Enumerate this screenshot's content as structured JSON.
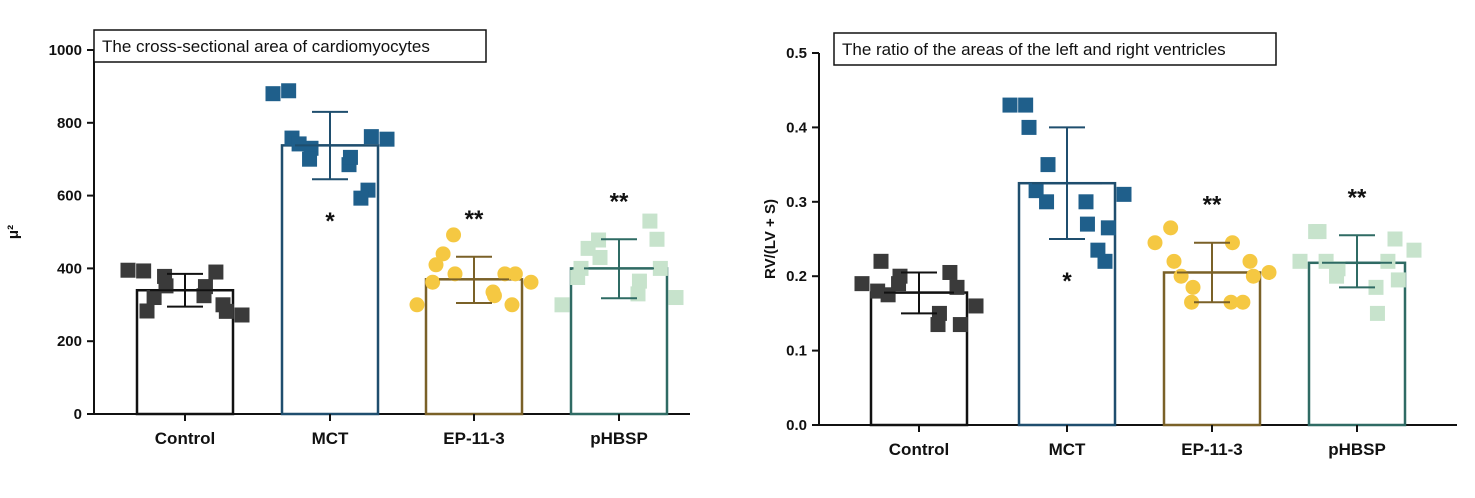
{
  "charts": [
    {
      "id": "left",
      "type": "bar",
      "title": "The cross-sectional area of cardiomyocytes",
      "ylabel": "μ²",
      "ylim": [
        0,
        1000
      ],
      "yticks": [
        "0",
        "200",
        "400",
        "600",
        "800",
        "1000"
      ],
      "ytick_values": [
        0,
        200,
        400,
        600,
        800,
        1000
      ],
      "categories": [
        "Control",
        "MCT",
        "EP-11-3",
        "pHBSP"
      ],
      "means": [
        340,
        738,
        370,
        400
      ],
      "error_bars": [
        [
          295,
          385
        ],
        [
          645,
          830
        ],
        [
          305,
          432
        ],
        [
          318,
          480
        ]
      ],
      "significance": [
        "",
        "*",
        "**",
        "**"
      ],
      "points": [
        [
          [
            395,
            393
          ],
          [
            283,
            320
          ],
          [
            352,
            378
          ],
          [
            325,
            350
          ],
          [
            300,
            390
          ],
          [
            272,
            282
          ]
        ],
        [
          [
            880,
            888
          ],
          [
            758,
            742
          ],
          [
            730,
            700
          ],
          [
            685,
            705
          ],
          [
            615,
            593
          ],
          [
            755,
            762
          ]
        ],
        [
          [
            300,
            362
          ],
          [
            410,
            440
          ],
          [
            385,
            492
          ],
          [
            335,
            325
          ],
          [
            300,
            385
          ],
          [
            362,
            385
          ]
        ],
        [
          [
            300,
            375
          ],
          [
            400,
            455
          ],
          [
            430,
            478
          ],
          [
            330,
            365
          ],
          [
            480,
            530
          ],
          [
            320,
            400
          ]
        ]
      ]
    },
    {
      "id": "right",
      "type": "bar",
      "title": "The ratio of the areas of the left and right ventricles",
      "ylabel": "RV/(LV + S)",
      "ylim": [
        0,
        0.5
      ],
      "yticks": [
        "0.0",
        "0.1",
        "0.2",
        "0.3",
        "0.4",
        "0.5"
      ],
      "ytick_values": [
        0,
        0.1,
        0.2,
        0.3,
        0.4,
        0.5
      ],
      "categories": [
        "Control",
        "MCT",
        "EP-11-3",
        "pHBSP"
      ],
      "means": [
        0.178,
        0.325,
        0.205,
        0.218
      ],
      "error_bars": [
        [
          0.15,
          0.205
        ],
        [
          0.25,
          0.4
        ],
        [
          0.165,
          0.245
        ],
        [
          0.185,
          0.255
        ]
      ],
      "significance": [
        "",
        "*",
        "**",
        "**"
      ],
      "points": [
        [
          [
            0.19,
            0.18
          ],
          [
            0.22,
            0.175
          ],
          [
            0.2,
            0.19
          ],
          [
            0.135,
            0.15
          ],
          [
            0.185,
            0.205
          ],
          [
            0.16,
            0.135
          ]
        ],
        [
          [
            0.43,
            0.43
          ],
          [
            0.4,
            0.315
          ],
          [
            0.35,
            0.3
          ],
          [
            0.3,
            0.27
          ],
          [
            0.22,
            0.235
          ],
          [
            0.31,
            0.265
          ]
        ],
        [
          [
            0.245,
            0.265
          ],
          [
            0.22,
            0.2
          ],
          [
            0.185,
            0.165
          ],
          [
            0.165,
            0.245
          ],
          [
            0.22,
            0.165
          ],
          [
            0.205,
            0.2
          ]
        ],
        [
          [
            0.22,
            0.26
          ],
          [
            0.26,
            0.22
          ],
          [
            0.21,
            0.2
          ],
          [
            0.185,
            0.15
          ],
          [
            0.25,
            0.22
          ],
          [
            0.235,
            0.195
          ]
        ]
      ]
    }
  ],
  "chart_data": [
    {
      "type": "bar",
      "title": "The cross-sectional area of cardiomyocytes",
      "xlabel": "",
      "ylabel": "μ²",
      "ylim": [
        0,
        1000
      ],
      "categories": [
        "Control",
        "MCT",
        "EP-11-3",
        "pHBSP"
      ],
      "values": [
        340,
        738,
        370,
        400
      ],
      "error_low": [
        295,
        645,
        305,
        318
      ],
      "error_high": [
        385,
        830,
        432,
        480
      ],
      "annotations": [
        "",
        "*",
        "**",
        "**"
      ]
    },
    {
      "type": "bar",
      "title": "The ratio of the areas of the left and right ventricles",
      "xlabel": "",
      "ylabel": "RV/(LV + S)",
      "ylim": [
        0,
        0.5
      ],
      "categories": [
        "Control",
        "MCT",
        "EP-11-3",
        "pHBSP"
      ],
      "values": [
        0.178,
        0.325,
        0.205,
        0.218
      ],
      "error_low": [
        0.15,
        0.25,
        0.165,
        0.185
      ],
      "error_high": [
        0.205,
        0.4,
        0.245,
        0.255
      ],
      "annotations": [
        "",
        "*",
        "**",
        "**"
      ]
    }
  ],
  "colors": {
    "groups": [
      "#3a3a3a",
      "#1f5f8b",
      "#f5c842",
      "#c7e3cc"
    ],
    "bar_edges": [
      "#111111",
      "#1f4e6e",
      "#7a6128",
      "#2f6b64"
    ],
    "axis": "#111111"
  },
  "marker_shapes": [
    "square",
    "square",
    "circle",
    "square"
  ]
}
